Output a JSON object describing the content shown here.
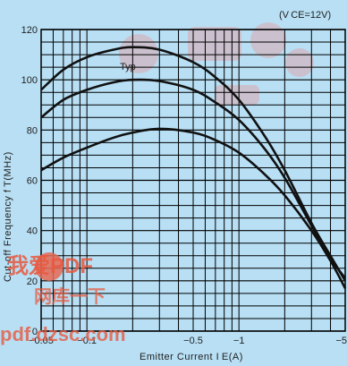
{
  "chart_data": {
    "type": "line",
    "title": "",
    "condition": "(V CE=12V)",
    "xlabel": "Emitter Current I E(A)",
    "ylabel": "Cut-off Frequency f T(MHz)",
    "xscale": "log",
    "xlim": [
      0.05,
      5
    ],
    "ylim": [
      0,
      120
    ],
    "grid": true,
    "x_ticks": [
      {
        "value": 0.05,
        "label": "−0.05"
      },
      {
        "value": 0.1,
        "label": "−0.1"
      },
      {
        "value": 0.5,
        "label": "−0.5"
      },
      {
        "value": 1,
        "label": "−1"
      },
      {
        "value": 5,
        "label": "−5"
      }
    ],
    "y_ticks": [
      0,
      20,
      40,
      60,
      80,
      100,
      120
    ],
    "annotation": "Typ",
    "series": [
      {
        "name": "",
        "points": [
          [
            0.05,
            96
          ],
          [
            0.07,
            104
          ],
          [
            0.1,
            109
          ],
          [
            0.15,
            112
          ],
          [
            0.2,
            113
          ],
          [
            0.3,
            112
          ],
          [
            0.5,
            107
          ],
          [
            0.7,
            101
          ],
          [
            1,
            92
          ],
          [
            1.5,
            77
          ],
          [
            2,
            64
          ],
          [
            3,
            43
          ],
          [
            4,
            30
          ],
          [
            5,
            20
          ]
        ]
      },
      {
        "name": "",
        "points": [
          [
            0.05,
            85
          ],
          [
            0.07,
            92
          ],
          [
            0.1,
            96
          ],
          [
            0.15,
            99
          ],
          [
            0.2,
            100
          ],
          [
            0.3,
            99.5
          ],
          [
            0.5,
            96
          ],
          [
            0.7,
            91
          ],
          [
            1,
            84
          ],
          [
            1.5,
            72
          ],
          [
            2,
            61
          ],
          [
            3,
            42
          ],
          [
            4,
            29
          ],
          [
            5,
            21
          ]
        ]
      },
      {
        "name": "",
        "points": [
          [
            0.05,
            64
          ],
          [
            0.07,
            69
          ],
          [
            0.1,
            73
          ],
          [
            0.15,
            77
          ],
          [
            0.2,
            79
          ],
          [
            0.3,
            80.5
          ],
          [
            0.5,
            79
          ],
          [
            0.7,
            76
          ],
          [
            1,
            71
          ],
          [
            1.5,
            62
          ],
          [
            2,
            54
          ],
          [
            3,
            40
          ],
          [
            4,
            28
          ],
          [
            5,
            17
          ]
        ]
      }
    ]
  },
  "watermark": {
    "logo_text": "我爱PDF",
    "sub_text": "网库一下",
    "url": "pdf.dzsc.com"
  }
}
